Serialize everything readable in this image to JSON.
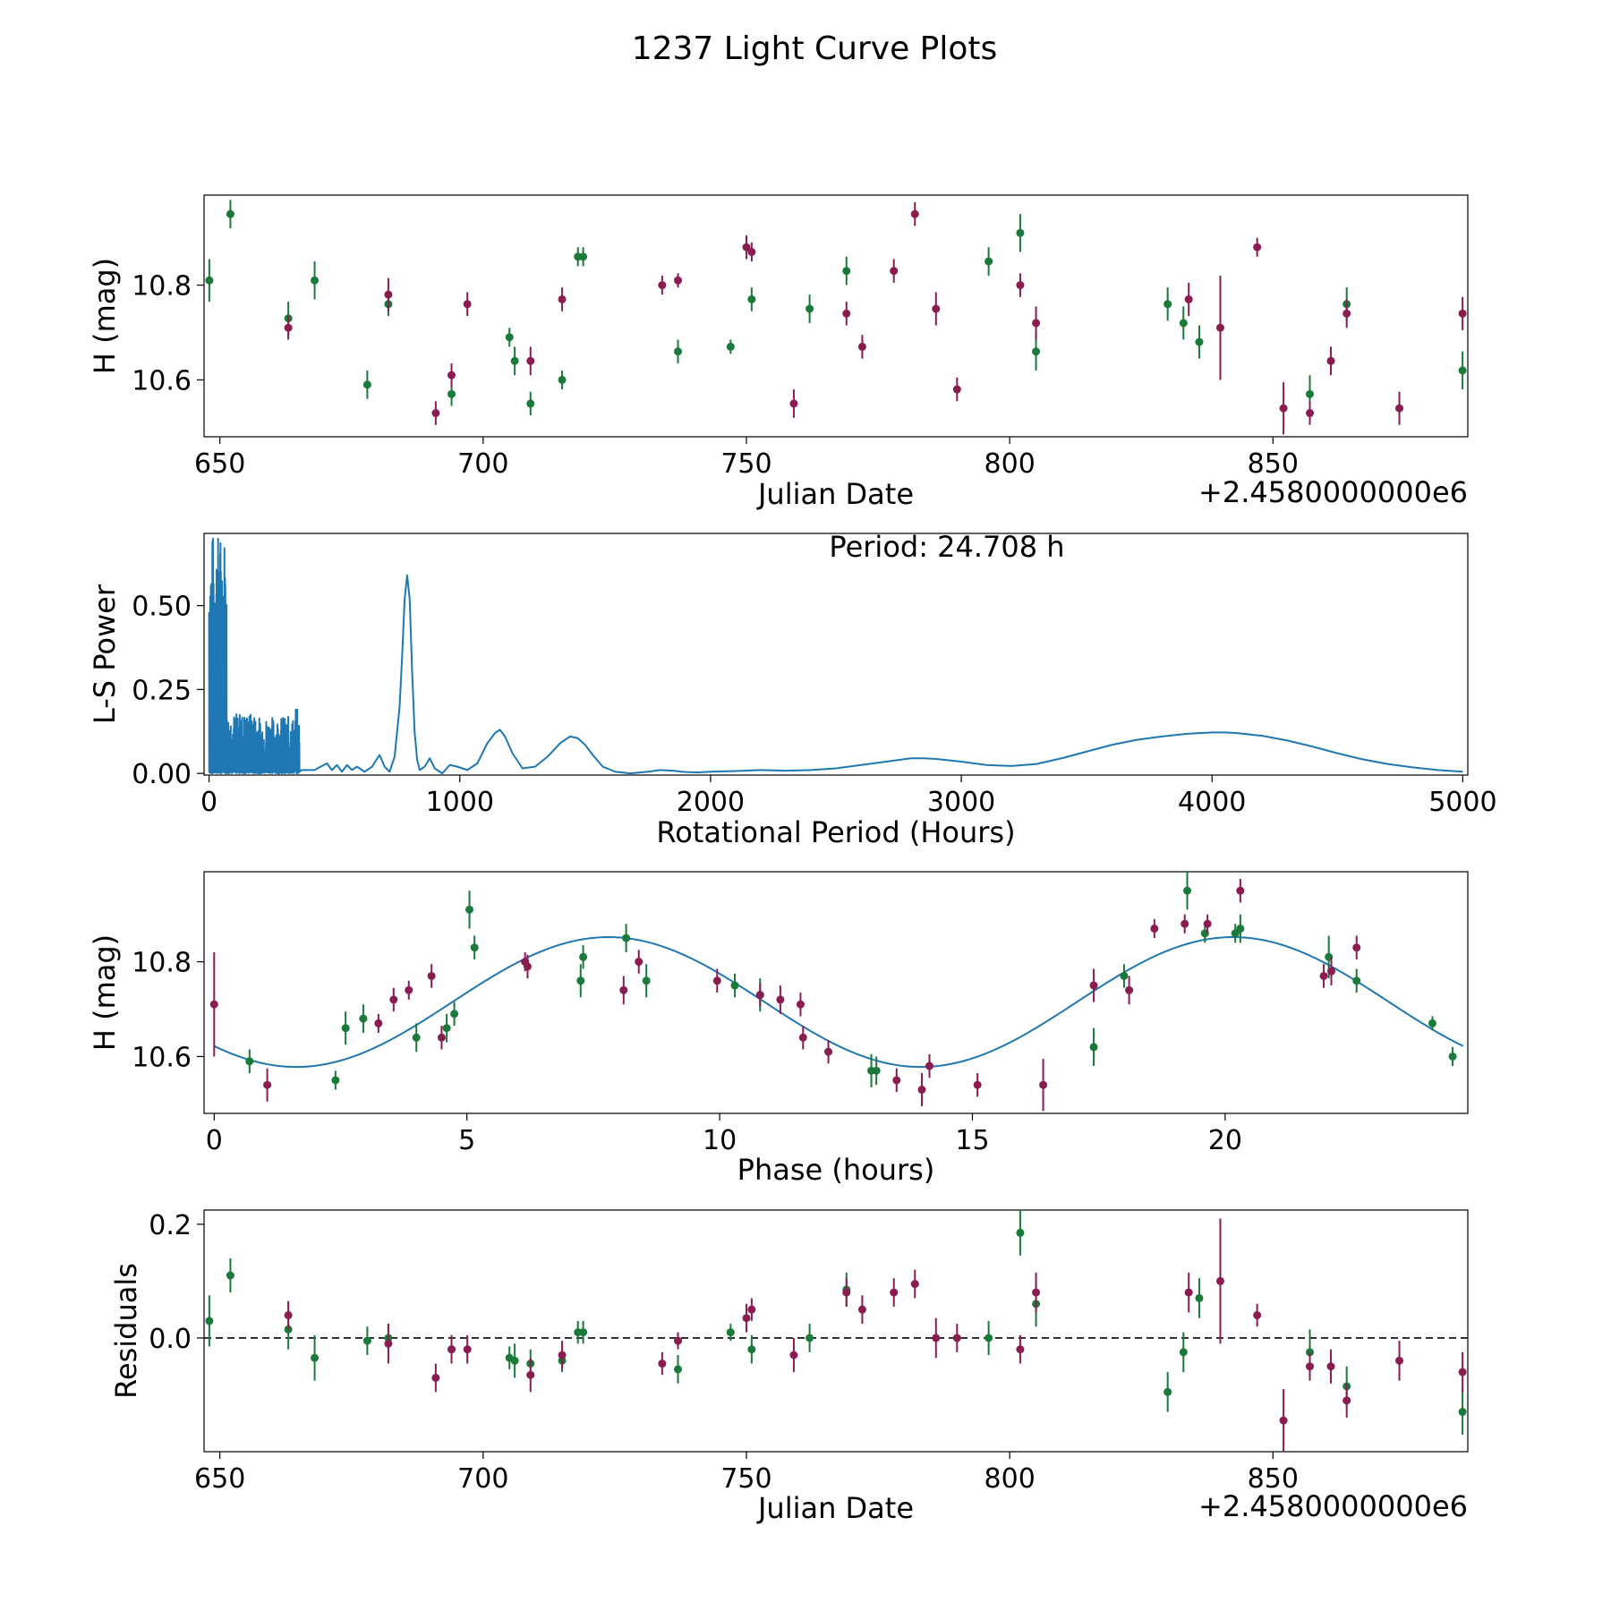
{
  "figure_title": "1237 Light Curve Plots",
  "colors": {
    "green": "#1a7a3a",
    "magenta": "#8b1c52",
    "line": "#1f77b4",
    "axis": "#000000"
  },
  "chart_data": [
    {
      "type": "scatter",
      "name": "light-curve",
      "xlabel": "Julian Date",
      "ylabel": "H (mag)",
      "offset_label": "+2.4580000000e6",
      "xlim": [
        647,
        887
      ],
      "ylim": [
        10.48,
        10.99
      ],
      "xticks": [
        650,
        700,
        750,
        800,
        850
      ],
      "yticks": [
        10.6,
        10.8
      ],
      "ytick_labels": [
        "10.6",
        "10.8"
      ],
      "series": [
        {
          "name": "green",
          "x": [
            648,
            652,
            663,
            668,
            678,
            682,
            694,
            705,
            706,
            709,
            715,
            718,
            719,
            737,
            747,
            751,
            762,
            769,
            796,
            802,
            805,
            830,
            833,
            836,
            857,
            864,
            886
          ],
          "y": [
            10.81,
            10.95,
            10.73,
            10.81,
            10.59,
            10.76,
            10.57,
            10.69,
            10.64,
            10.55,
            10.6,
            10.86,
            10.86,
            10.66,
            10.67,
            10.77,
            10.75,
            10.83,
            10.85,
            10.91,
            10.66,
            10.76,
            10.72,
            10.68,
            10.57,
            10.76,
            10.62
          ],
          "err": [
            0.045,
            0.03,
            0.035,
            0.04,
            0.03,
            0.025,
            0.025,
            0.02,
            0.03,
            0.025,
            0.02,
            0.02,
            0.02,
            0.025,
            0.015,
            0.025,
            0.03,
            0.03,
            0.03,
            0.04,
            0.04,
            0.035,
            0.035,
            0.035,
            0.04,
            0.035,
            0.04
          ]
        },
        {
          "name": "magenta",
          "x": [
            663,
            682,
            691,
            694,
            697,
            709,
            715,
            734,
            737,
            750,
            751,
            759,
            769,
            772,
            778,
            782,
            786,
            790,
            802,
            805,
            834,
            840,
            847,
            852,
            857,
            861,
            864,
            874,
            886
          ],
          "y": [
            10.71,
            10.78,
            10.53,
            10.61,
            10.76,
            10.64,
            10.77,
            10.8,
            10.81,
            10.88,
            10.87,
            10.55,
            10.74,
            10.67,
            10.83,
            10.95,
            10.75,
            10.58,
            10.8,
            10.72,
            10.77,
            10.71,
            10.88,
            10.54,
            10.53,
            10.64,
            10.74,
            10.54,
            10.74
          ],
          "err": [
            0.025,
            0.035,
            0.025,
            0.025,
            0.025,
            0.03,
            0.025,
            0.02,
            0.015,
            0.025,
            0.02,
            0.03,
            0.025,
            0.025,
            0.025,
            0.025,
            0.035,
            0.025,
            0.025,
            0.035,
            0.035,
            0.11,
            0.02,
            0.055,
            0.025,
            0.03,
            0.03,
            0.035,
            0.035
          ]
        }
      ]
    },
    {
      "type": "line",
      "name": "periodogram",
      "xlabel": "Rotational Period (Hours)",
      "ylabel": "L-S Power",
      "annotation": "Period: 24.708 h",
      "xlim": [
        -20,
        5020
      ],
      "ylim": [
        -0.005,
        0.715
      ],
      "xticks": [
        0,
        1000,
        2000,
        3000,
        4000,
        5000
      ],
      "yticks": [
        0.0,
        0.25,
        0.5
      ],
      "ytick_labels": [
        "0.00",
        "0.25",
        "0.50"
      ],
      "spike_region": [
        0,
        360
      ],
      "x": [
        370,
        420,
        470,
        490,
        510,
        530,
        550,
        570,
        590,
        620,
        650,
        680,
        700,
        720,
        740,
        760,
        770,
        780,
        790,
        800,
        810,
        820,
        830,
        840,
        860,
        880,
        900,
        930,
        960,
        990,
        1030,
        1070,
        1110,
        1140,
        1160,
        1180,
        1210,
        1250,
        1300,
        1350,
        1400,
        1440,
        1470,
        1500,
        1530,
        1570,
        1620,
        1680,
        1750,
        1800,
        1850,
        1900,
        1950,
        2000,
        2100,
        2200,
        2300,
        2400,
        2500,
        2600,
        2700,
        2800,
        2850,
        2900,
        3000,
        3100,
        3200,
        3300,
        3400,
        3500,
        3600,
        3700,
        3800,
        3900,
        4000,
        4050,
        4100,
        4200,
        4300,
        4400,
        4500,
        4600,
        4700,
        4800,
        4900,
        5000
      ],
      "y": [
        0.01,
        0.01,
        0.03,
        0.01,
        0.025,
        0.005,
        0.025,
        0.01,
        0.02,
        0.005,
        0.02,
        0.055,
        0.02,
        0.005,
        0.05,
        0.2,
        0.35,
        0.52,
        0.59,
        0.52,
        0.3,
        0.12,
        0.04,
        0.01,
        0.02,
        0.045,
        0.015,
        0.0,
        0.025,
        0.02,
        0.01,
        0.03,
        0.09,
        0.12,
        0.13,
        0.11,
        0.06,
        0.015,
        0.02,
        0.05,
        0.09,
        0.11,
        0.105,
        0.085,
        0.055,
        0.02,
        0.005,
        0.0,
        0.005,
        0.01,
        0.008,
        0.004,
        0.003,
        0.005,
        0.007,
        0.01,
        0.008,
        0.01,
        0.015,
        0.025,
        0.035,
        0.045,
        0.045,
        0.043,
        0.035,
        0.025,
        0.022,
        0.028,
        0.045,
        0.065,
        0.085,
        0.1,
        0.11,
        0.118,
        0.122,
        0.122,
        0.12,
        0.112,
        0.098,
        0.08,
        0.06,
        0.042,
        0.028,
        0.018,
        0.01,
        0.005
      ]
    },
    {
      "type": "scatter",
      "name": "phase-folded",
      "xlabel": "Phase (hours)",
      "ylabel": "H (mag)",
      "xlim": [
        -0.2,
        24.8
      ],
      "ylim": [
        10.48,
        10.99
      ],
      "xticks": [
        0,
        5,
        10,
        15,
        20
      ],
      "yticks": [
        10.6,
        10.8
      ],
      "ytick_labels": [
        "10.6",
        "10.8"
      ],
      "model": {
        "mean": 10.715,
        "amplitude": 0.137,
        "period": 12.354,
        "peak_phase": 7.8
      },
      "series": [
        {
          "name": "green",
          "x": [
            0.7,
            2.4,
            2.6,
            2.95,
            4.0,
            4.6,
            4.75,
            5.05,
            5.15,
            7.25,
            7.3,
            8.15,
            8.55,
            10.3,
            10.8,
            13.0,
            13.1,
            17.4,
            18.0,
            19.25,
            19.6,
            20.2,
            20.3,
            22.05,
            22.6,
            24.1,
            24.5
          ],
          "y": [
            10.59,
            10.55,
            10.66,
            10.68,
            10.64,
            10.66,
            10.69,
            10.91,
            10.83,
            10.76,
            10.81,
            10.85,
            10.76,
            10.75,
            10.73,
            10.57,
            10.57,
            10.62,
            10.77,
            10.95,
            10.86,
            10.86,
            10.87,
            10.81,
            10.76,
            10.67,
            10.6
          ],
          "err": [
            0.025,
            0.02,
            0.035,
            0.03,
            0.03,
            0.03,
            0.025,
            0.04,
            0.025,
            0.035,
            0.025,
            0.03,
            0.035,
            0.025,
            0.035,
            0.035,
            0.03,
            0.04,
            0.025,
            0.04,
            0.02,
            0.02,
            0.03,
            0.045,
            0.025,
            0.015,
            0.02
          ]
        },
        {
          "name": "magenta",
          "x": [
            0.0,
            1.05,
            3.25,
            3.55,
            3.85,
            4.3,
            4.5,
            6.15,
            6.2,
            8.1,
            8.4,
            9.95,
            10.8,
            11.2,
            11.6,
            11.65,
            12.15,
            13.5,
            14.0,
            14.15,
            15.1,
            16.4,
            17.4,
            18.1,
            18.6,
            19.2,
            19.65,
            20.3,
            21.95,
            22.1,
            22.6
          ],
          "y": [
            10.71,
            10.54,
            10.67,
            10.72,
            10.74,
            10.77,
            10.64,
            10.8,
            10.79,
            10.74,
            10.8,
            10.76,
            10.73,
            10.72,
            10.71,
            10.64,
            10.61,
            10.55,
            10.53,
            10.58,
            10.54,
            10.54,
            10.75,
            10.74,
            10.87,
            10.88,
            10.88,
            10.95,
            10.77,
            10.78,
            10.83
          ],
          "err": [
            0.11,
            0.035,
            0.02,
            0.025,
            0.02,
            0.025,
            0.025,
            0.02,
            0.025,
            0.03,
            0.025,
            0.025,
            0.025,
            0.03,
            0.025,
            0.025,
            0.025,
            0.025,
            0.035,
            0.025,
            0.025,
            0.055,
            0.035,
            0.03,
            0.02,
            0.02,
            0.02,
            0.025,
            0.025,
            0.03,
            0.025
          ]
        }
      ]
    },
    {
      "type": "scatter",
      "name": "residuals",
      "xlabel": "Julian Date",
      "ylabel": "Residuals",
      "offset_label": "+2.4580000000e6",
      "xlim": [
        647,
        887
      ],
      "ylim": [
        -0.2,
        0.225
      ],
      "xticks": [
        650,
        700,
        750,
        800,
        850
      ],
      "yticks": [
        0.0,
        0.2
      ],
      "ytick_labels": [
        "0.0",
        "0.2"
      ],
      "zero_line": true,
      "series": [
        {
          "name": "green",
          "x": [
            648,
            652,
            663,
            668,
            678,
            682,
            694,
            705,
            706,
            709,
            715,
            718,
            719,
            737,
            747,
            751,
            762,
            769,
            796,
            802,
            805,
            830,
            833,
            836,
            857,
            864,
            886
          ],
          "y": [
            0.03,
            0.11,
            0.015,
            -0.035,
            -0.005,
            0.0,
            -0.02,
            -0.035,
            -0.04,
            -0.045,
            -0.04,
            0.01,
            0.01,
            -0.055,
            0.01,
            -0.02,
            0.0,
            0.085,
            0.0,
            0.185,
            0.06,
            -0.095,
            -0.025,
            0.07,
            -0.025,
            -0.085,
            -0.13
          ],
          "err": [
            0.045,
            0.03,
            0.035,
            0.04,
            0.025,
            0.025,
            0.025,
            0.02,
            0.03,
            0.025,
            0.02,
            0.02,
            0.02,
            0.025,
            0.015,
            0.025,
            0.025,
            0.03,
            0.03,
            0.04,
            0.04,
            0.035,
            0.035,
            0.035,
            0.04,
            0.035,
            0.04
          ]
        },
        {
          "name": "magenta",
          "x": [
            663,
            682,
            691,
            694,
            697,
            709,
            715,
            734,
            737,
            750,
            751,
            759,
            769,
            772,
            778,
            782,
            786,
            790,
            802,
            805,
            834,
            840,
            847,
            852,
            857,
            861,
            864,
            874,
            886
          ],
          "y": [
            0.04,
            -0.01,
            -0.07,
            -0.02,
            -0.02,
            -0.065,
            -0.03,
            -0.045,
            -0.005,
            0.035,
            0.05,
            -0.03,
            0.08,
            0.05,
            0.08,
            0.095,
            0.0,
            0.0,
            -0.02,
            0.08,
            0.08,
            0.1,
            0.04,
            -0.145,
            -0.05,
            -0.05,
            -0.11,
            -0.04,
            -0.06
          ],
          "err": [
            0.025,
            0.035,
            0.025,
            0.025,
            0.025,
            0.03,
            0.025,
            0.02,
            0.015,
            0.025,
            0.02,
            0.03,
            0.025,
            0.025,
            0.025,
            0.025,
            0.035,
            0.025,
            0.025,
            0.035,
            0.035,
            0.11,
            0.02,
            0.055,
            0.025,
            0.03,
            0.03,
            0.035,
            0.035
          ]
        }
      ]
    }
  ]
}
